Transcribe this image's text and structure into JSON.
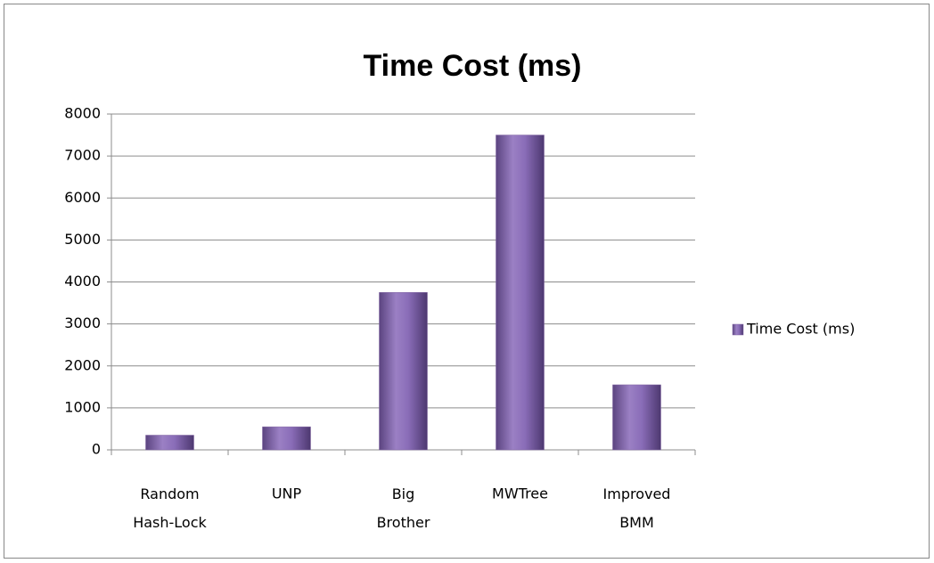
{
  "chart_data": {
    "type": "bar",
    "title": "Time Cost (ms)",
    "categories": [
      "Random Hash-Lock",
      "UNP",
      "Big Brother",
      "MWTree",
      "Improved BMM"
    ],
    "series": [
      {
        "name": "Time Cost (ms)",
        "color": "#8064a2",
        "values": [
          350,
          550,
          3750,
          7500,
          1550
        ]
      }
    ],
    "ylim": [
      0,
      8000
    ],
    "yticks": [
      0,
      1000,
      2000,
      3000,
      4000,
      5000,
      6000,
      7000,
      8000
    ],
    "grid": true,
    "legend": "right"
  }
}
